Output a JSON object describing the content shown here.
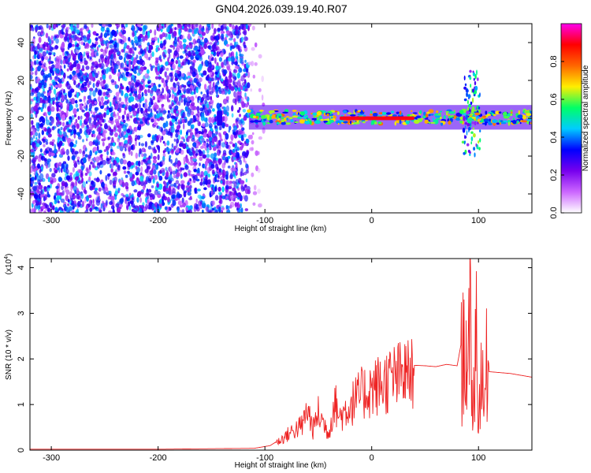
{
  "figure": {
    "title": "GN04.2026.039.19.40.R07"
  },
  "chart_data": [
    {
      "type": "heatmap",
      "name": "spectrogram",
      "xlabel": "Height of straight line (km)",
      "ylabel": "Frequency (Hz)",
      "xlim": [
        -320,
        150
      ],
      "ylim": [
        -50,
        50
      ],
      "xticks": [
        -300,
        -200,
        -100,
        0,
        100
      ],
      "yticks": [
        -40,
        -20,
        0,
        20,
        40
      ],
      "colorbar": {
        "label": "Normalized spectral amplitude",
        "range": [
          0,
          1
        ],
        "ticks": [
          "0.0",
          "0.2",
          "0.4",
          "0.6",
          "0.8"
        ],
        "colormap": [
          "#ffffff",
          "#cc66ff",
          "#7700ee",
          "#0000ff",
          "#00ccff",
          "#00ff66",
          "#ffee00",
          "#ff6600",
          "#ff0000",
          "#ff00ee"
        ]
      },
      "regions": [
        {
          "x": [
            -320,
            -115
          ],
          "y": [
            -50,
            50
          ],
          "level": 0.35,
          "pattern": "noise"
        },
        {
          "x": [
            -115,
            -100
          ],
          "y": [
            -50,
            50
          ],
          "level": 0.1,
          "pattern": "sparse noise"
        },
        {
          "x": [
            -145,
            -140
          ],
          "y": [
            -4,
            4
          ],
          "level": 0.3
        },
        {
          "x": [
            -115,
            150
          ],
          "y": [
            -3,
            4
          ],
          "level": 0.6,
          "pattern": "band"
        },
        {
          "x": [
            -30,
            40
          ],
          "y": [
            -1,
            1
          ],
          "level": 0.9
        },
        {
          "x": [
            85,
            102
          ],
          "y": [
            -20,
            25
          ],
          "level": 0.4,
          "pattern": "spike"
        }
      ]
    },
    {
      "type": "line",
      "name": "snr",
      "ylabel": "SNR (10 * v/v)",
      "yscale_note": "(x10",
      "yscale_exp": "4",
      "xlabel": "Height of straight line (km)",
      "xlim": [
        -320,
        150
      ],
      "ylim": [
        0,
        4.2
      ],
      "xticks": [
        -300,
        -200,
        -100,
        0,
        100
      ],
      "yticks": [
        0,
        1,
        2,
        3,
        4
      ],
      "color": "#ee2222",
      "series": [
        {
          "x": [
            -320,
            -200,
            -110,
            -95,
            -85,
            -75,
            -65,
            -60,
            -55,
            -50,
            -40,
            -35,
            -30,
            -20,
            -10,
            0,
            10,
            20,
            30,
            40,
            50,
            60,
            70,
            80,
            85,
            88,
            90,
            92,
            95,
            98,
            100,
            102,
            105,
            108,
            110,
            120,
            130,
            150
          ],
          "values": [
            0.02,
            0.02,
            0.04,
            0.1,
            0.25,
            0.45,
            0.6,
            1.0,
            0.5,
            0.9,
            0.4,
            1.2,
            0.8,
            1.1,
            1.35,
            1.5,
            1.62,
            1.75,
            1.82,
            1.86,
            1.85,
            1.83,
            1.88,
            1.85,
            2.5,
            3.2,
            1.5,
            3.6,
            1.0,
            3.8,
            0.3,
            2.7,
            1.0,
            2.5,
            1.72,
            1.7,
            1.68,
            1.6
          ]
        }
      ]
    }
  ]
}
